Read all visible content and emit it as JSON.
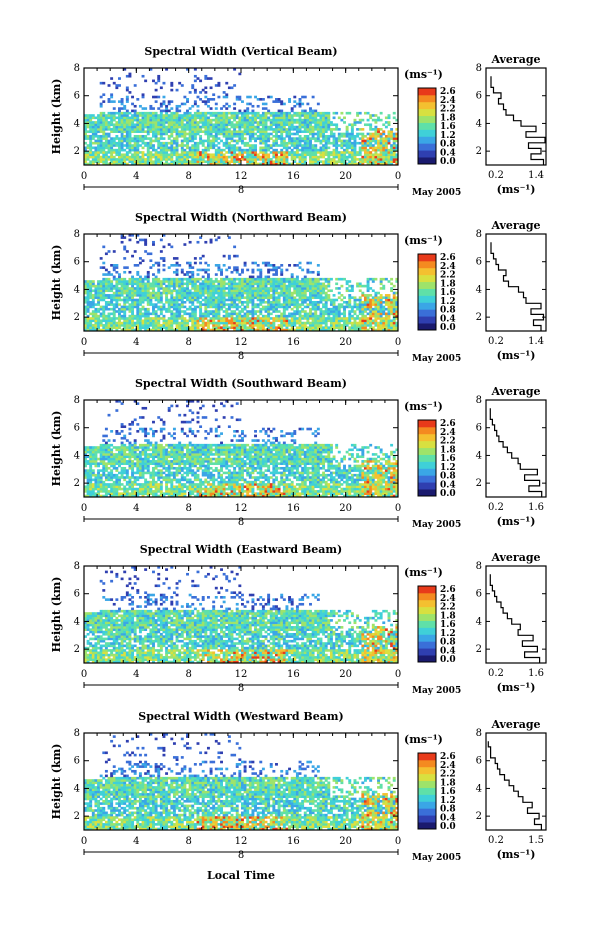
{
  "figure": {
    "xlabel": "Local Time",
    "date_label": "May 2005",
    "day_label": "8",
    "x_ticks": [
      "0",
      "4",
      "8",
      "12",
      "16",
      "20",
      "0"
    ],
    "y_ticks": [
      "2",
      "4",
      "6",
      "8"
    ],
    "ylabel": "Height (km)",
    "colorbar_unit": "(ms⁻¹)",
    "avg_title": "Average",
    "avg_unit": "(ms⁻¹)",
    "avg_y_ticks": [
      "2",
      "4",
      "6",
      "8"
    ]
  },
  "colors": {
    "scale": [
      "#1a1a6e",
      "#2f3fb0",
      "#3a6fd8",
      "#3aa6e6",
      "#3fd0d8",
      "#5fe0a8",
      "#9ee36a",
      "#d8e040",
      "#f4c030",
      "#f48a20",
      "#e83a1a"
    ]
  },
  "chart_data": [
    {
      "type": "heatmap",
      "title": "Spectral Width (Vertical Beam)",
      "xlabel": "Local Time",
      "ylabel": "Height (km)",
      "xlim": [
        0,
        24
      ],
      "ylim": [
        1,
        8
      ],
      "colorbar": {
        "ticks": [
          "2.6",
          "2.4",
          "2.2",
          "1.8",
          "1.6",
          "1.2",
          "0.8",
          "0.4",
          "0.0"
        ]
      },
      "average_profile": {
        "xticks": [
          "0.2",
          "1.4"
        ],
        "xlim": [
          0.2,
          1.4
        ],
        "ylim": [
          1,
          8
        ],
        "height": [
          1.2,
          1.6,
          2.0,
          2.4,
          2.8,
          3.2,
          3.6,
          4.0,
          4.4,
          4.8,
          5.2,
          5.6,
          6.0,
          6.4,
          6.8,
          7.2
        ],
        "width": [
          1.35,
          1.1,
          1.3,
          1.05,
          1.38,
          1.0,
          1.2,
          0.9,
          0.75,
          0.6,
          0.55,
          0.45,
          0.5,
          0.35,
          0.3,
          0.3
        ]
      }
    },
    {
      "type": "heatmap",
      "title": "Spectral Width (Northward Beam)",
      "xlabel": "Local Time",
      "ylabel": "Height (km)",
      "xlim": [
        0,
        24
      ],
      "ylim": [
        1,
        8
      ],
      "colorbar": {
        "ticks": [
          "2.6",
          "2.4",
          "2.2",
          "1.8",
          "1.6",
          "1.2",
          "0.8",
          "0.4",
          "0.0"
        ]
      },
      "average_profile": {
        "xticks": [
          "0.2",
          "1.4"
        ],
        "xlim": [
          0.2,
          1.4
        ],
        "ylim": [
          1,
          8
        ],
        "height": [
          1.2,
          1.6,
          2.0,
          2.4,
          2.8,
          3.2,
          3.6,
          4.0,
          4.4,
          4.8,
          5.2,
          5.6,
          6.0,
          6.4,
          6.8,
          7.2
        ],
        "width": [
          1.3,
          1.15,
          1.35,
          1.1,
          1.3,
          1.0,
          0.95,
          0.85,
          0.65,
          0.55,
          0.6,
          0.45,
          0.4,
          0.35,
          0.3,
          0.3
        ]
      }
    },
    {
      "type": "heatmap",
      "title": "Spectral Width (Southward Beam)",
      "xlabel": "Local Time",
      "ylabel": "Height (km)",
      "xlim": [
        0,
        24
      ],
      "ylim": [
        1,
        8
      ],
      "colorbar": {
        "ticks": [
          "2.6",
          "2.4",
          "2.2",
          "1.8",
          "1.6",
          "1.2",
          "0.8",
          "0.4",
          "0.0"
        ]
      },
      "average_profile": {
        "xticks": [
          "0.2",
          "1.6"
        ],
        "xlim": [
          0.2,
          1.6
        ],
        "ylim": [
          1,
          8
        ],
        "height": [
          1.2,
          1.6,
          2.0,
          2.4,
          2.8,
          3.2,
          3.6,
          4.0,
          4.4,
          4.8,
          5.2,
          5.6,
          6.0,
          6.4,
          6.8,
          7.2
        ],
        "width": [
          1.5,
          1.2,
          1.45,
          1.1,
          1.4,
          1.0,
          0.95,
          0.8,
          0.7,
          0.6,
          0.5,
          0.45,
          0.4,
          0.35,
          0.3,
          0.3
        ]
      }
    },
    {
      "type": "heatmap",
      "title": "Spectral Width (Eastward Beam)",
      "xlabel": "Local Time",
      "ylabel": "Height (km)",
      "xlim": [
        0,
        24
      ],
      "ylim": [
        1,
        8
      ],
      "colorbar": {
        "ticks": [
          "2.6",
          "2.4",
          "2.2",
          "1.8",
          "1.6",
          "1.2",
          "0.8",
          "0.4",
          "0.0"
        ]
      },
      "average_profile": {
        "xticks": [
          "0.2",
          "1.6"
        ],
        "xlim": [
          0.2,
          1.6
        ],
        "ylim": [
          1,
          8
        ],
        "height": [
          1.2,
          1.6,
          2.0,
          2.4,
          2.8,
          3.2,
          3.6,
          4.0,
          4.4,
          4.8,
          5.2,
          5.6,
          6.0,
          6.4,
          6.8,
          7.2
        ],
        "width": [
          1.45,
          1.1,
          1.4,
          1.05,
          1.3,
          0.95,
          1.0,
          0.8,
          0.7,
          0.6,
          0.55,
          0.45,
          0.4,
          0.35,
          0.3,
          0.3
        ]
      }
    },
    {
      "type": "heatmap",
      "title": "Spectral Width (Westward Beam)",
      "xlabel": "Local Time",
      "ylabel": "Height (km)",
      "xlim": [
        0,
        24
      ],
      "ylim": [
        1,
        8
      ],
      "colorbar": {
        "ticks": [
          "2.6",
          "2.4",
          "2.2",
          "1.8",
          "1.6",
          "1.2",
          "0.8",
          "0.4",
          "0.0"
        ]
      },
      "average_profile": {
        "xticks": [
          "0.2",
          "1.5"
        ],
        "xlim": [
          0.2,
          1.5
        ],
        "ylim": [
          1,
          8
        ],
        "height": [
          1.2,
          1.6,
          2.0,
          2.4,
          2.8,
          3.2,
          3.6,
          4.0,
          4.4,
          4.8,
          5.2,
          5.6,
          6.0,
          6.4,
          6.8,
          7.2
        ],
        "width": [
          1.4,
          1.25,
          1.35,
          1.1,
          1.2,
          1.0,
          0.9,
          0.8,
          0.7,
          0.6,
          0.5,
          0.45,
          0.4,
          0.3,
          0.3,
          0.25
        ]
      }
    }
  ]
}
